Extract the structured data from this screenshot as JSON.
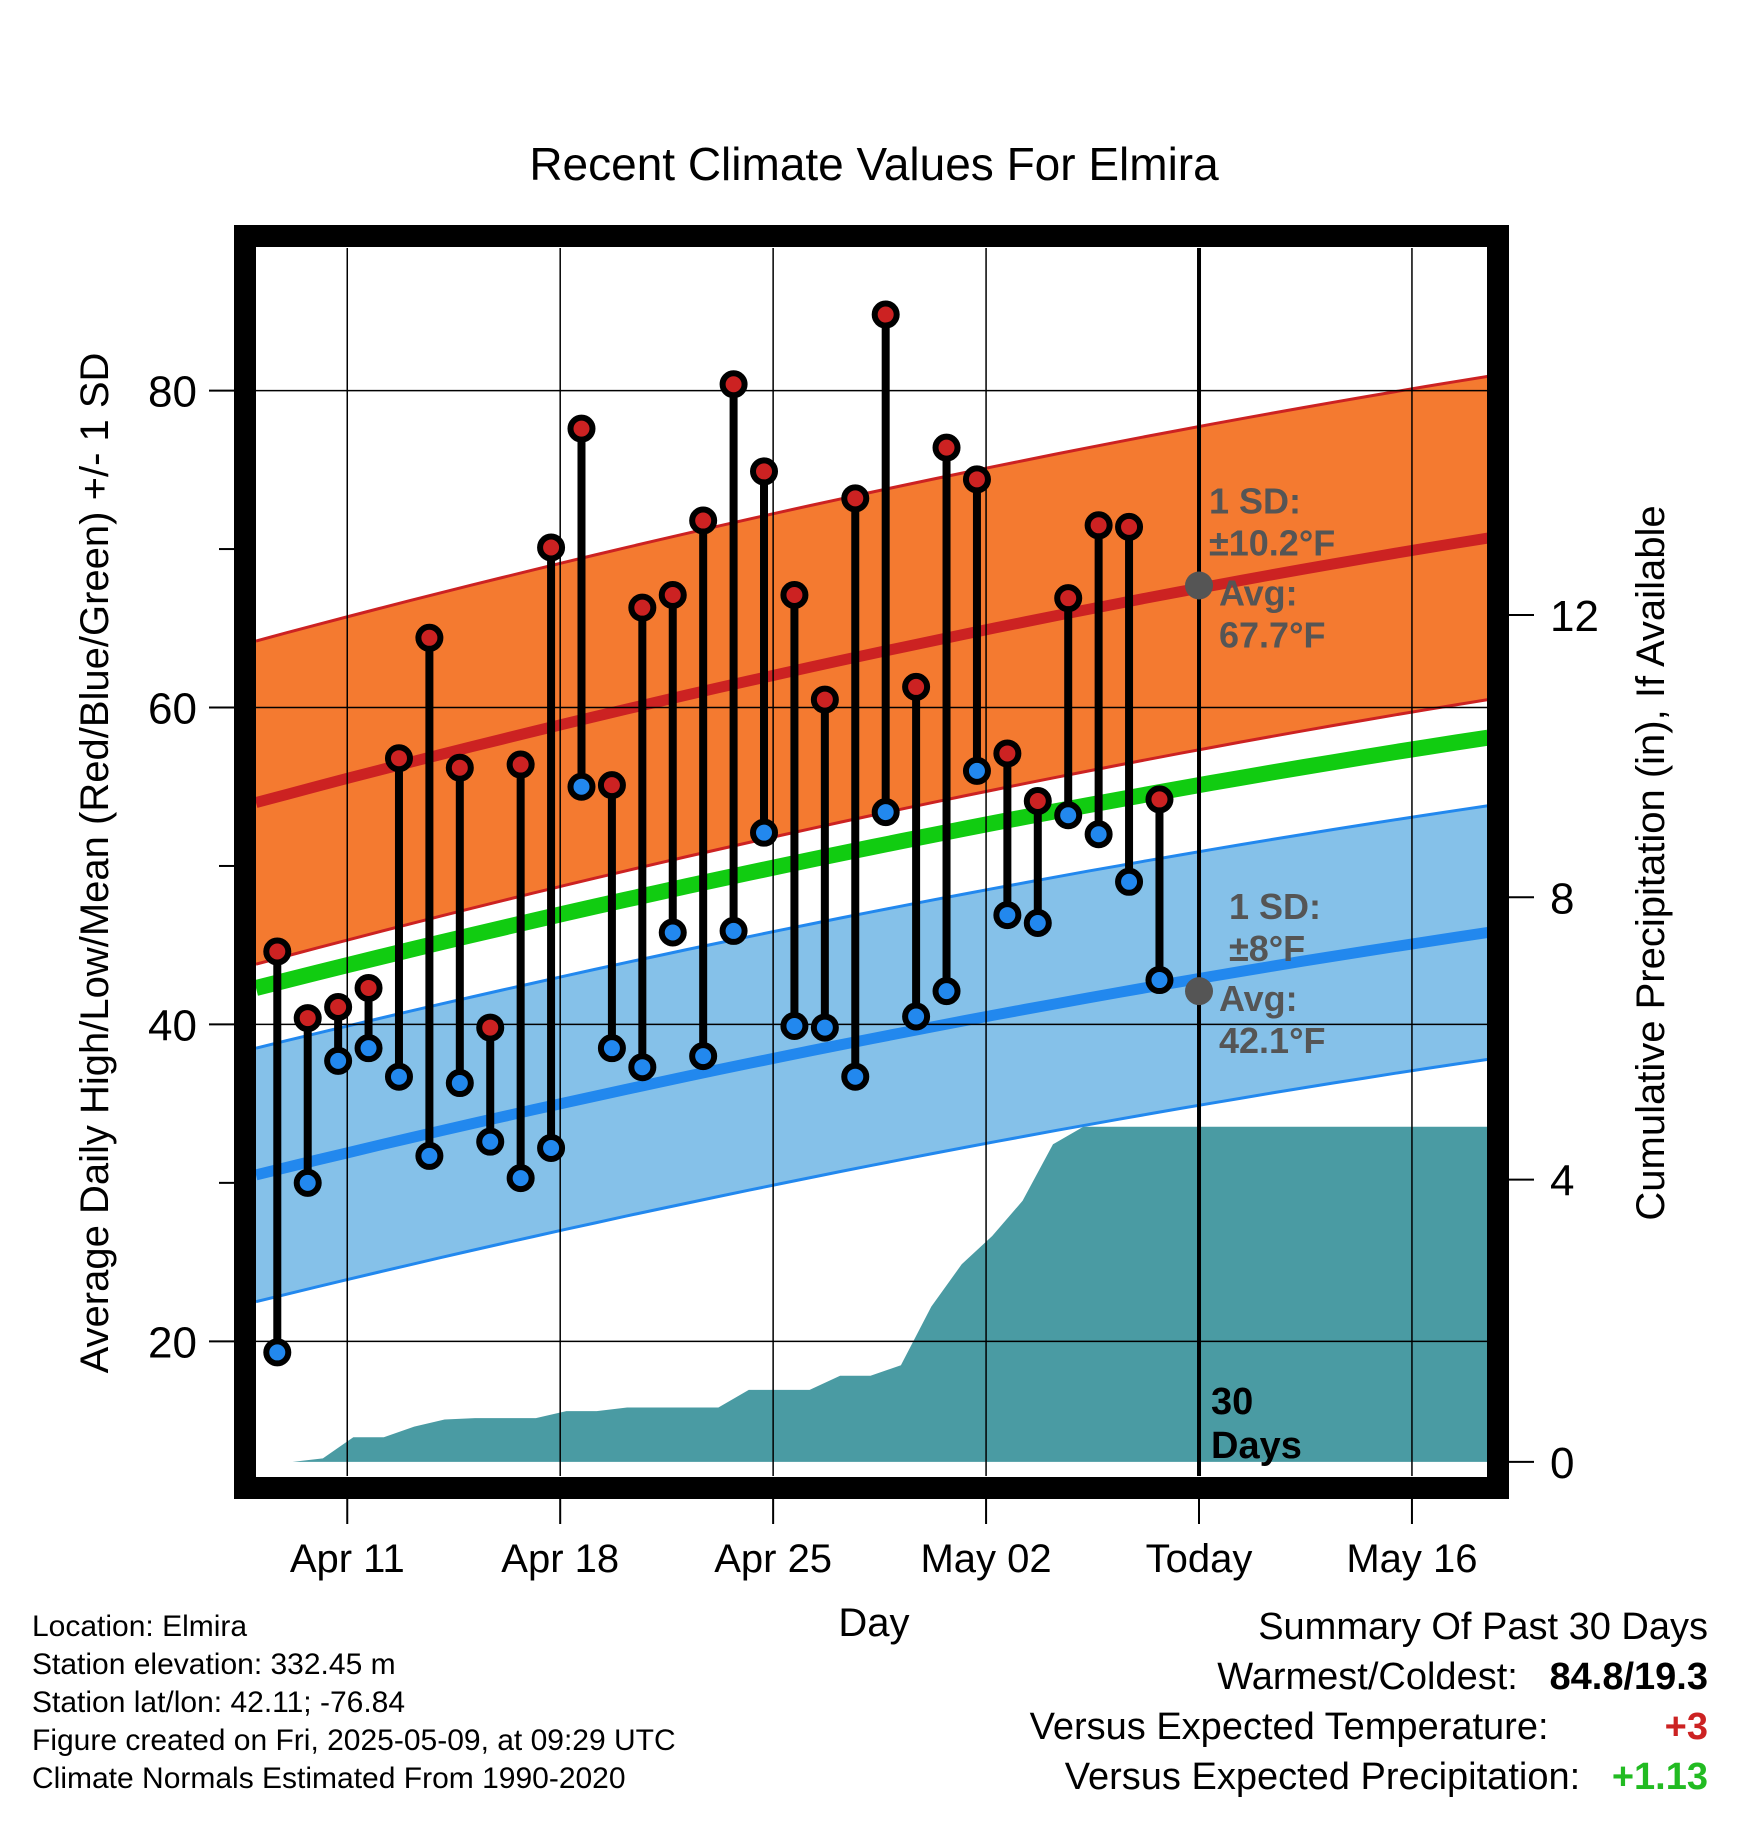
{
  "chart_data": {
    "type": "line",
    "title": "Recent Climate Values For Elmira",
    "xlabel": "Day",
    "ylabel": "Average Daily High/Low/Mean (Red/Blue/Green) +/- 1 SD",
    "y2label": "Cumulative Precipitation (in), If Available",
    "ylim": [
      11.5,
      89
    ],
    "y2lim": [
      -0.2,
      17.2
    ],
    "yticks": [
      "20",
      "40",
      "60",
      "80"
    ],
    "y2ticks": [
      "0",
      "4",
      "8",
      "12"
    ],
    "xticks": [
      {
        "day": 11,
        "label": "Apr 11"
      },
      {
        "day": 18,
        "label": "Apr 18"
      },
      {
        "day": 25,
        "label": "Apr 25"
      },
      {
        "day": 32,
        "label": "May 02"
      },
      {
        "day": 39,
        "label": "Today"
      },
      {
        "day": 46,
        "label": "May 16"
      }
    ],
    "xlim": [
      8,
      48.5
    ],
    "grid": true,
    "days": [
      8.7,
      9.7,
      10.7,
      11.7,
      12.7,
      13.7,
      14.7,
      15.7,
      16.7,
      17.7,
      18.7,
      19.7,
      20.7,
      21.7,
      22.7,
      23.7,
      24.7,
      25.7,
      26.7,
      27.7,
      28.7,
      29.7,
      30.7,
      31.7,
      32.7,
      33.7,
      34.7,
      35.7,
      36.7,
      37.7
    ],
    "series": [
      {
        "name": "High",
        "color": "#cc2222",
        "values": [
          44.6,
          40.4,
          41.1,
          42.3,
          56.8,
          64.4,
          56.2,
          39.8,
          56.4,
          70.1,
          77.6,
          55.1,
          66.3,
          67.1,
          71.8,
          80.4,
          74.9,
          67.1,
          60.5,
          73.2,
          84.8,
          61.3,
          76.4,
          74.4,
          57.1,
          54.1,
          66.9,
          71.5,
          71.4,
          54.2
        ]
      },
      {
        "name": "Low",
        "color": "#2288ee",
        "values": [
          19.3,
          30.0,
          37.7,
          38.5,
          36.7,
          31.7,
          36.3,
          32.6,
          30.3,
          32.2,
          55.0,
          38.5,
          37.3,
          45.8,
          38.0,
          45.9,
          52.1,
          39.9,
          39.8,
          36.7,
          53.4,
          40.5,
          42.1,
          56.0,
          46.9,
          46.4,
          53.2,
          52.0,
          49.0,
          42.8
        ]
      }
    ],
    "normals": {
      "high": {
        "color": "#cc2222",
        "start": 54.0,
        "end": 70.7,
        "sd": 10.2,
        "today_avg": "67.7",
        "today_avg_value": 67.7
      },
      "low": {
        "color": "#2288ee",
        "start": 30.5,
        "end": 45.8,
        "sd": 8.0,
        "today_avg": "42.1",
        "today_avg_value": 42.1
      },
      "mean": {
        "color": "#11cc11",
        "start": 42.3,
        "end": 58.1
      },
      "high_band_color": "#f47a30",
      "low_band_color": "#85c1e9"
    },
    "precipitation": {
      "color": "#4a9ba3",
      "days": [
        8,
        9.2,
        10.2,
        11.2,
        12.2,
        13.2,
        14.2,
        15.2,
        16.2,
        17.2,
        18.2,
        19.2,
        20.2,
        21.2,
        22.2,
        23.2,
        24.2,
        25.2,
        26.2,
        27.2,
        28.2,
        29.2,
        30.2,
        31.2,
        32.2,
        33.2,
        34.2,
        35.2,
        36.2,
        37.2,
        38.2,
        39,
        48.5
      ],
      "values": [
        0,
        0,
        0.05,
        0.35,
        0.35,
        0.5,
        0.6,
        0.62,
        0.62,
        0.62,
        0.72,
        0.72,
        0.77,
        0.77,
        0.77,
        0.77,
        1.02,
        1.02,
        1.02,
        1.22,
        1.22,
        1.37,
        2.2,
        2.8,
        3.2,
        3.7,
        4.5,
        4.75,
        4.75,
        4.75,
        4.75,
        4.75,
        4.75
      ]
    },
    "today_line": {
      "day": 39
    },
    "annotations": {
      "high_sd_title": "1 SD:",
      "high_sd_value": "±10.2°F",
      "high_avg_label": "Avg:",
      "high_avg_value": "67.7°F",
      "low_sd_title": "1 SD:",
      "low_sd_value": "±8°F",
      "low_avg_label": "Avg:",
      "low_avg_value": "42.1°F",
      "days_line1": "30",
      "days_line2": "Days"
    }
  },
  "station_info": {
    "location": "Location: Elmira",
    "elevation": "Station elevation: 332.45 m",
    "latlon": "Station lat/lon: 42.11; -76.84",
    "created": "Figure created on Fri, 2025-05-09, at 09:29 UTC",
    "normals": "Climate Normals Estimated From 1990-2020"
  },
  "summary": {
    "title": "Summary Of Past 30 Days",
    "warm_cold_label": "Warmest/Coldest:",
    "warm_cold_value": "84.8/19.3",
    "temp_label": "Versus Expected Temperature:",
    "temp_value": "+3",
    "temp_color": "#cc2222",
    "precip_label": "Versus Expected Precipitation:",
    "precip_value": "+1.13",
    "precip_color": "#22bb22"
  }
}
